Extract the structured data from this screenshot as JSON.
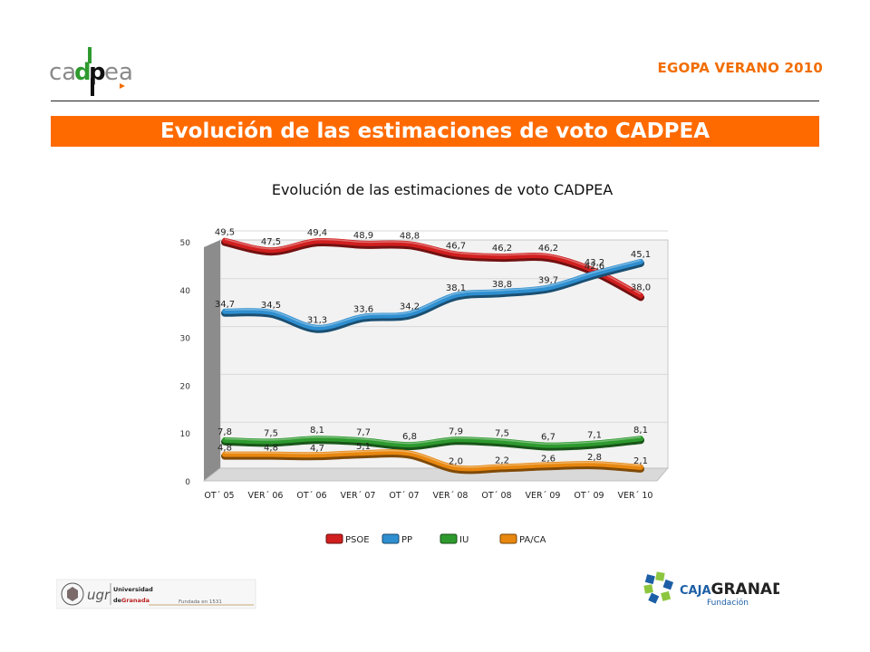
{
  "header": {
    "logo_text": "cadpea",
    "right_title": "EGOPA VERANO 2010"
  },
  "banner": {
    "title": "Evolución de las estimaciones de voto CADPEA"
  },
  "chart_data": {
    "type": "line",
    "title": "Evolución de las estimaciones de voto CADPEA",
    "categories": [
      "OT´ 05",
      "VER´ 06",
      "OT´ 06",
      "VER´ 07",
      "OT´ 07",
      "VER´ 08",
      "OT´ 08",
      "VER´ 09",
      "OT´ 09",
      "VER´ 10"
    ],
    "ylim": [
      0,
      50
    ],
    "yticks": [
      0,
      10,
      20,
      30,
      40,
      50
    ],
    "grid": true,
    "legend_position": "bottom",
    "series": [
      {
        "name": "PSOE",
        "color": "#d11f1f",
        "values": [
          49.5,
          47.5,
          49.4,
          48.9,
          48.8,
          46.7,
          46.2,
          46.2,
          43.2,
          38.0
        ],
        "labels": [
          "49,5",
          "47,5",
          "49,4",
          "48,9",
          "48,8",
          "46,7",
          "46,2",
          "46,2",
          "43,2",
          "38,0"
        ]
      },
      {
        "name": "PP",
        "color": "#2f8fd0",
        "values": [
          34.7,
          34.5,
          31.3,
          33.6,
          34.2,
          38.1,
          38.8,
          39.7,
          42.6,
          45.1
        ],
        "labels": [
          "34,7",
          "34,5",
          "31,3",
          "33,6",
          "34,2",
          "38,1",
          "38,8",
          "39,7",
          "42,6",
          "45,1"
        ]
      },
      {
        "name": "IU",
        "color": "#2e9a2e",
        "values": [
          7.8,
          7.5,
          8.1,
          7.7,
          6.8,
          7.9,
          7.5,
          6.7,
          7.1,
          8.1
        ],
        "labels": [
          "7,8",
          "7,5",
          "8,1",
          "7,7",
          "6,8",
          "7,9",
          "7,5",
          "6,7",
          "7,1",
          "8,1"
        ]
      },
      {
        "name": "PA/CA",
        "color": "#e8870f",
        "values": [
          4.8,
          4.8,
          4.7,
          5.1,
          5.0,
          2.0,
          2.2,
          2.6,
          2.8,
          2.1
        ],
        "labels": [
          "4,8",
          "4,8",
          "4,7",
          "5,1",
          "",
          "2,0",
          "2,2",
          "2,6",
          "2,8",
          "2,1"
        ]
      }
    ]
  },
  "footer": {
    "ugr_mark": "ugr",
    "ugr_line1": "Universidad",
    "ugr_line2_prefix": "de",
    "ugr_line2_accent": "Granada",
    "ugr_founded": "Fundada en 1531",
    "caja_prefix": "CAJA",
    "caja_name": "GRANADA",
    "caja_sub": "Fundación"
  }
}
